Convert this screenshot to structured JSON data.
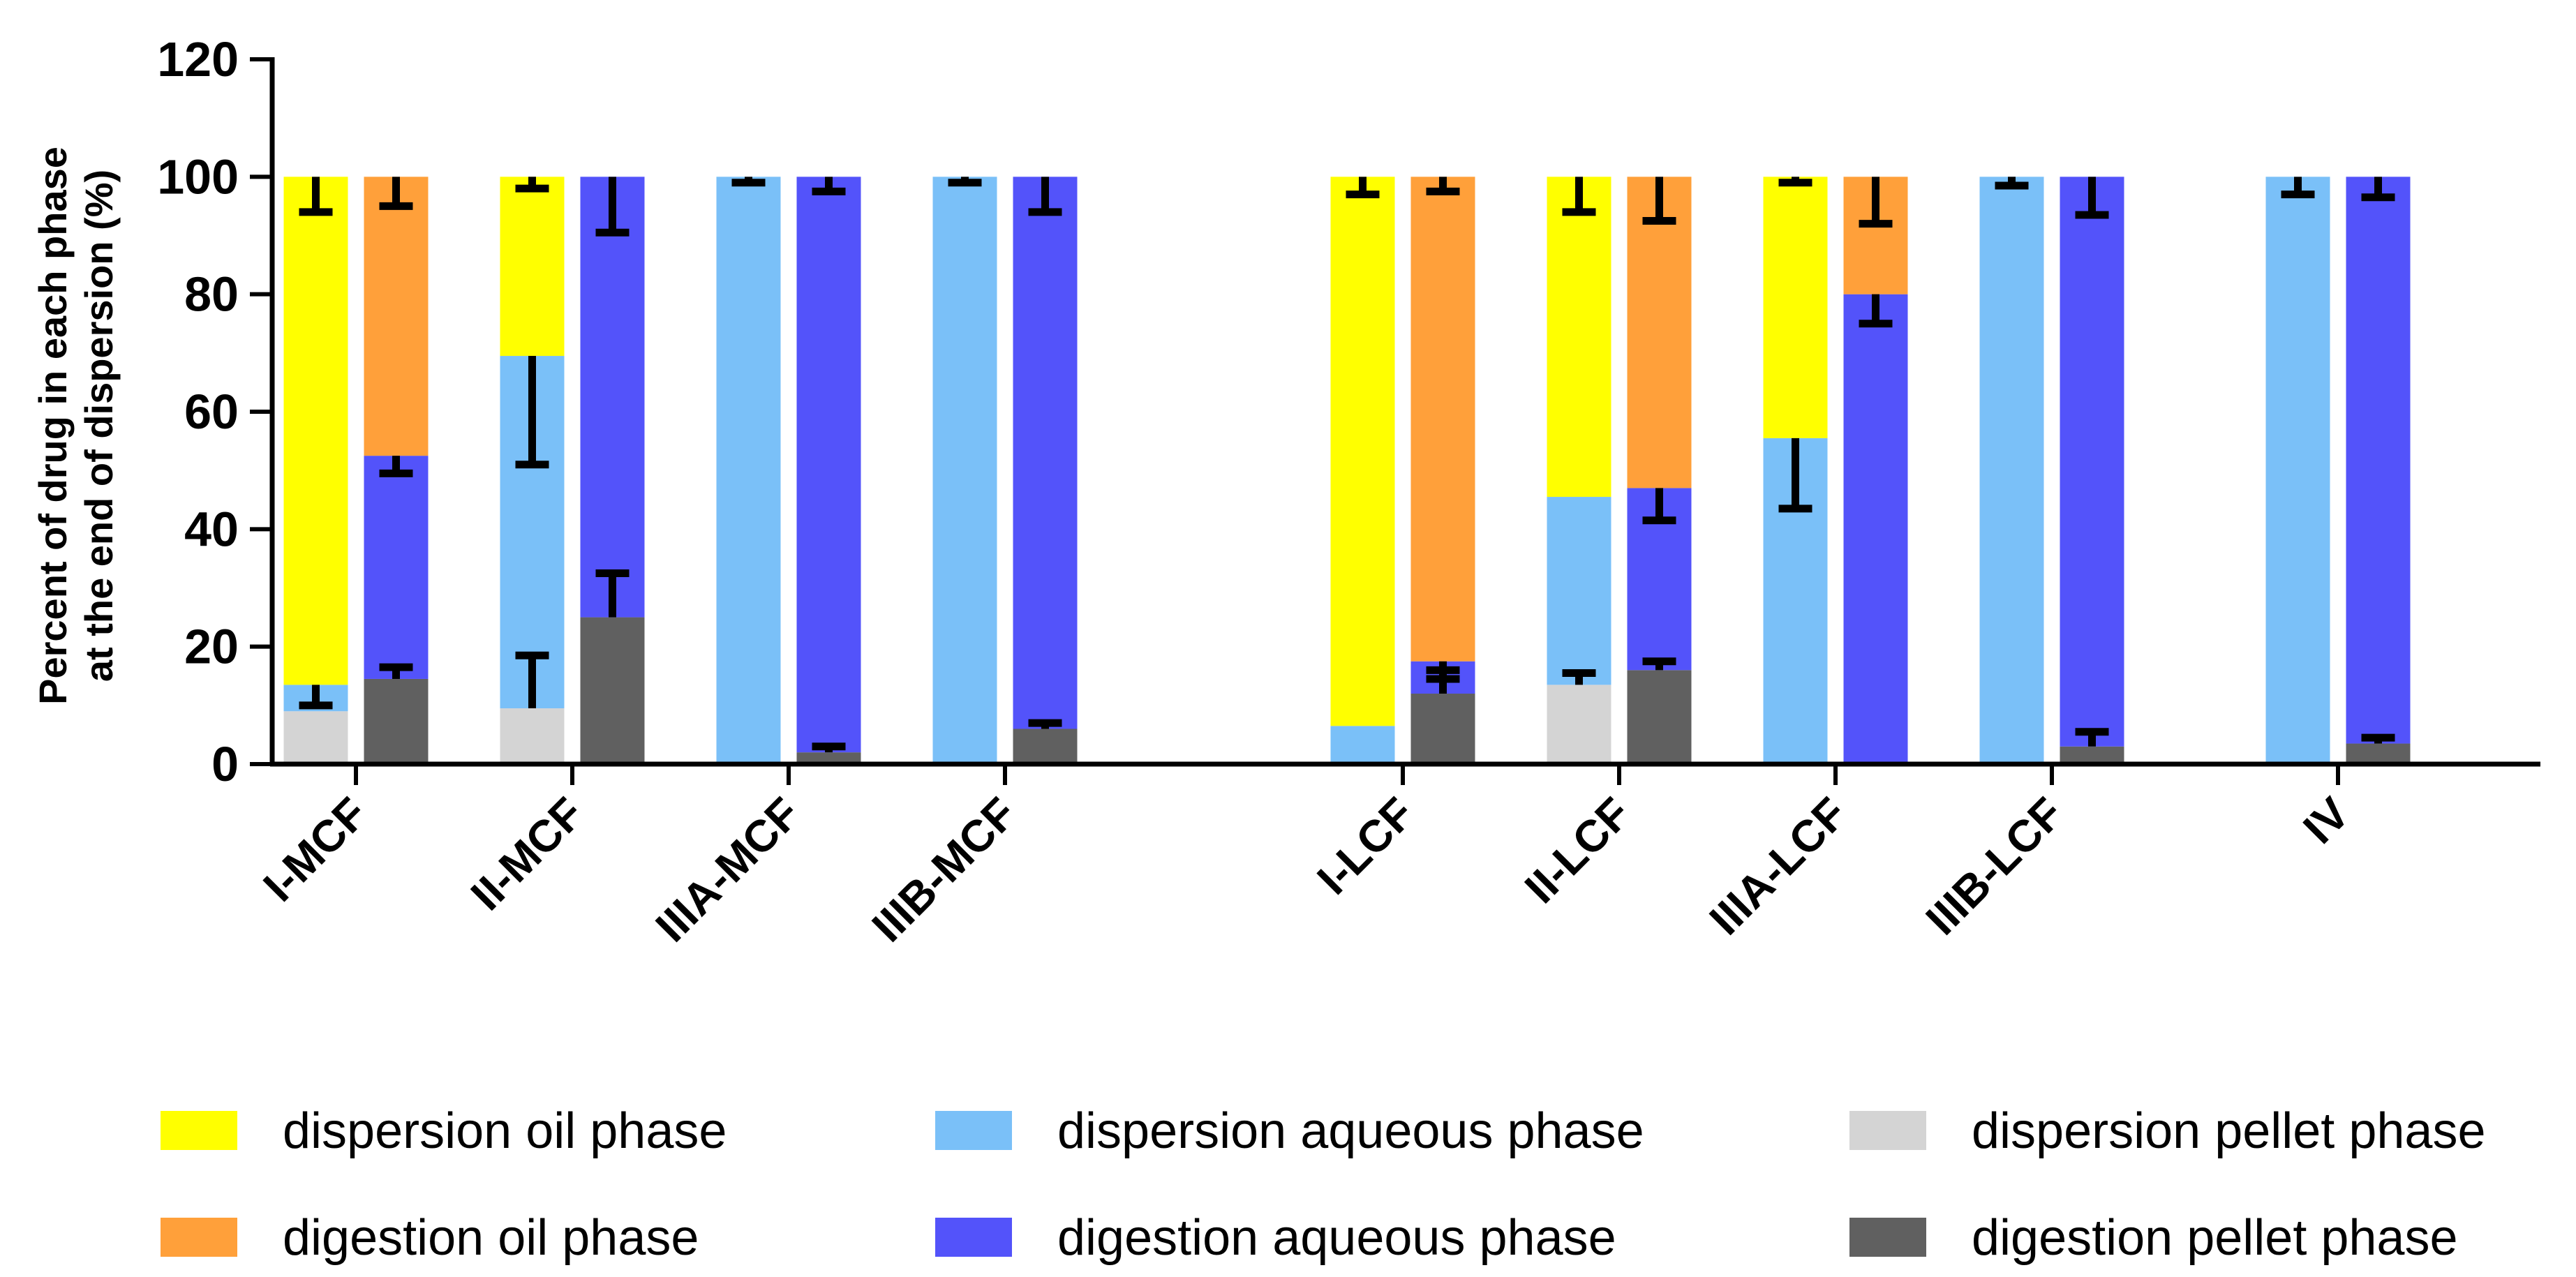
{
  "chart_data": {
    "type": "bar",
    "stacked": true,
    "title": "",
    "xlabel": "",
    "ylabel": [
      "Percent of drug in each phase",
      "at the end of dispersion (%)"
    ],
    "ylim": [
      0,
      120
    ],
    "yticks": [
      0,
      20,
      40,
      60,
      80,
      100,
      120
    ],
    "grid": false,
    "legend_position": "bottom",
    "categories": [
      "I-MCF",
      "II-MCF",
      "IIIA-MCF",
      "IIIB-MCF",
      "I-LCF",
      "II-LCF",
      "IIIA-LCF",
      "IIIB-LCF",
      "IV"
    ],
    "colors": {
      "dispersion_oil": "#ffff00",
      "dispersion_aqueous": "#7ac0f8",
      "dispersion_pellet": "#d4d4d4",
      "digestion_oil": "#ffa03a",
      "digestion_aqueous": "#5353fa",
      "digestion_pellet": "#606060"
    },
    "legend": [
      {
        "key": "dispersion_oil",
        "label": "dispersion oil phase"
      },
      {
        "key": "dispersion_aqueous",
        "label": "dispersion aqueous phase"
      },
      {
        "key": "dispersion_pellet",
        "label": "dispersion pellet phase"
      },
      {
        "key": "digestion_oil",
        "label": "digestion oil phase"
      },
      {
        "key": "digestion_aqueous",
        "label": "digestion aqueous phase"
      },
      {
        "key": "digestion_pellet",
        "label": "digestion pellet phase"
      }
    ],
    "dispersion": {
      "pellet": [
        9,
        9.5,
        0,
        0,
        0,
        13.5,
        0,
        0,
        0
      ],
      "aqueous": [
        4.5,
        60,
        100,
        100,
        6.5,
        32,
        55.5,
        100,
        100
      ],
      "oil": [
        86.5,
        30.5,
        0,
        0,
        93.5,
        54.5,
        44.5,
        0,
        0
      ],
      "errors": [
        [
          {
            "value": 13.5,
            "down": 3.5,
            "up": 0
          },
          {
            "value": 100,
            "down": 6,
            "up": 0
          }
        ],
        [
          {
            "value": 9.5,
            "down": 0,
            "up": 9
          },
          {
            "value": 69.5,
            "down": 18.5,
            "up": 0
          },
          {
            "value": 100,
            "down": 2,
            "up": 0
          }
        ],
        [
          {
            "value": 100,
            "down": 1,
            "up": 0
          }
        ],
        [
          {
            "value": 100,
            "down": 1,
            "up": 0
          }
        ],
        [
          {
            "value": 100,
            "down": 3,
            "up": 0
          }
        ],
        [
          {
            "value": 13.5,
            "down": 0,
            "up": 2
          },
          {
            "value": 100,
            "down": 6,
            "up": 0
          }
        ],
        [
          {
            "value": 55.5,
            "down": 12,
            "up": 0
          },
          {
            "value": 100,
            "down": 1,
            "up": 0
          }
        ],
        [
          {
            "value": 100,
            "down": 1.5,
            "up": 0
          }
        ],
        [
          {
            "value": 100,
            "down": 3,
            "up": 0
          }
        ]
      ]
    },
    "digestion": {
      "pellet": [
        14.5,
        25,
        2,
        6,
        12,
        16,
        0,
        3,
        3.5
      ],
      "aqueous": [
        38,
        75,
        98,
        94,
        5.5,
        31,
        80,
        97,
        96.5
      ],
      "oil": [
        47.5,
        0,
        0,
        0,
        82.5,
        53,
        20,
        0,
        0
      ],
      "errors": [
        [
          {
            "value": 14.5,
            "down": 0,
            "up": 2
          },
          {
            "value": 52.5,
            "down": 3,
            "up": 0
          },
          {
            "value": 100,
            "down": 5,
            "up": 0
          }
        ],
        [
          {
            "value": 25,
            "down": 0,
            "up": 7.5
          },
          {
            "value": 100,
            "down": 9.5,
            "up": 0
          }
        ],
        [
          {
            "value": 2,
            "down": 0,
            "up": 1
          },
          {
            "value": 100,
            "down": 2.5,
            "up": 0
          }
        ],
        [
          {
            "value": 6,
            "down": 0,
            "up": 1
          },
          {
            "value": 100,
            "down": 6,
            "up": 0
          }
        ],
        [
          {
            "value": 12,
            "down": 0,
            "up": 4
          },
          {
            "value": 17.5,
            "down": 3,
            "up": 0
          },
          {
            "value": 100,
            "down": 2.5,
            "up": 0
          }
        ],
        [
          {
            "value": 16,
            "down": 0,
            "up": 1.5
          },
          {
            "value": 47,
            "down": 5.5,
            "up": 0
          },
          {
            "value": 100,
            "down": 7.5,
            "up": 0
          }
        ],
        [
          {
            "value": 80,
            "down": 5,
            "up": 0
          },
          {
            "value": 100,
            "down": 8,
            "up": 0
          }
        ],
        [
          {
            "value": 3,
            "down": 0,
            "up": 2.5
          },
          {
            "value": 100,
            "down": 6.5,
            "up": 0
          }
        ],
        [
          {
            "value": 3.5,
            "down": 0,
            "up": 1
          },
          {
            "value": 100,
            "down": 3.5,
            "up": 0
          }
        ]
      ]
    }
  }
}
